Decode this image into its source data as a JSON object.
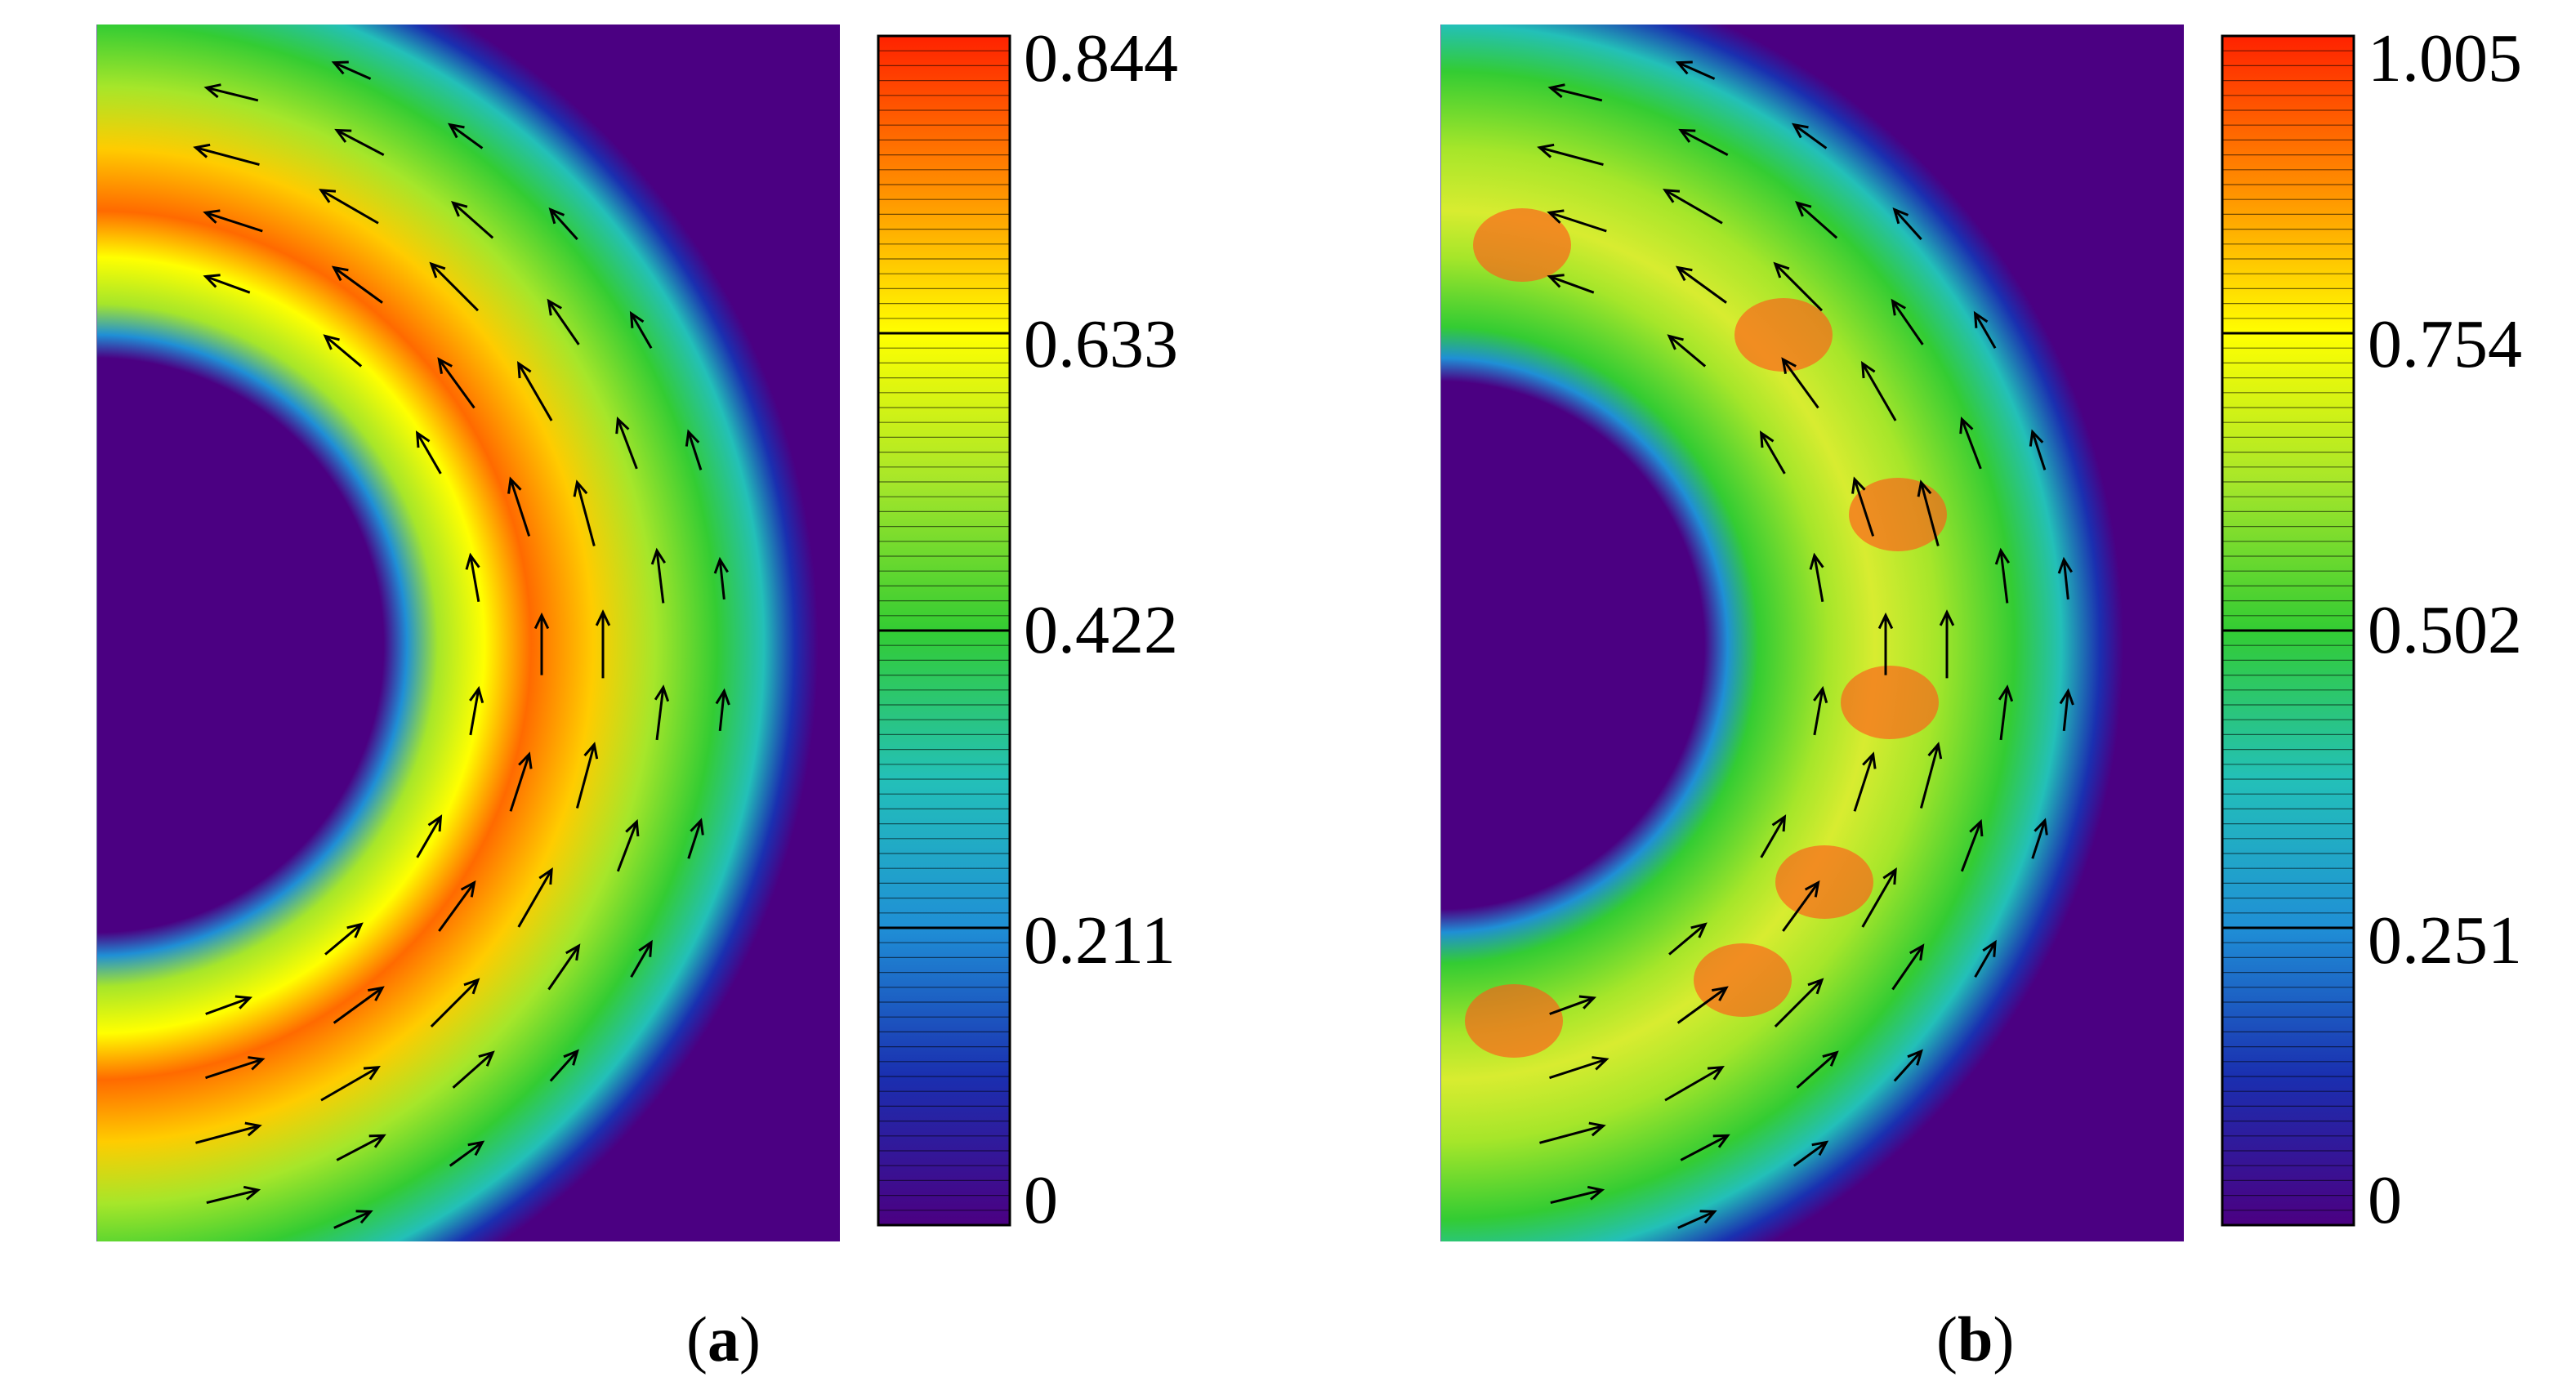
{
  "chart_data": [
    {
      "type": "heatmap",
      "panel": "a",
      "caption_open": "(",
      "caption_letter": "a",
      "caption_close": ")",
      "colorbar_ticks": [
        "0.844",
        "0.633",
        "0.422",
        "0.211",
        "0"
      ],
      "colorbar_range": [
        0,
        0.844
      ],
      "arrows": "velocity vectors circulating counter-clockwise around an annular region",
      "colormap": [
        "#4b0082",
        "#1a2fb0",
        "#1f8fd6",
        "#23c0b8",
        "#33cc33",
        "#a6e62a",
        "#ffff00",
        "#ff8c00",
        "#ff2200"
      ]
    },
    {
      "type": "heatmap",
      "panel": "b",
      "caption_open": "(",
      "caption_letter": "b",
      "caption_close": ")",
      "colorbar_ticks": [
        "1.005",
        "0.754",
        "0.502",
        "0.251",
        "0"
      ],
      "colorbar_range": [
        0,
        1.005
      ],
      "colormap": [
        "#4b0082",
        "#1a2fb0",
        "#1f8fd6",
        "#23c0b8",
        "#33cc33",
        "#a6e62a",
        "#ffff00",
        "#ff8c00",
        "#ff2200"
      ]
    }
  ]
}
